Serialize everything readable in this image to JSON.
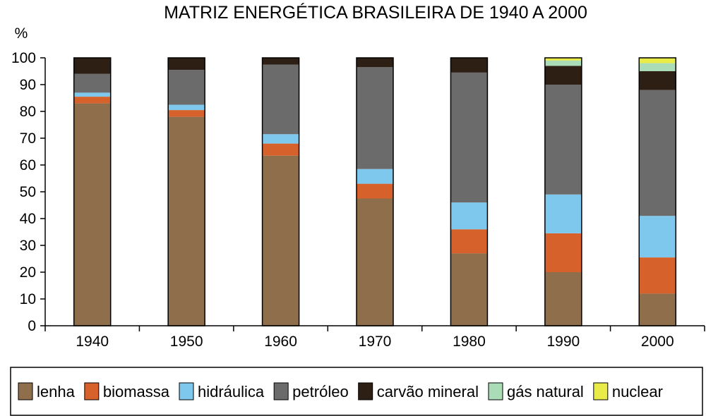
{
  "chart_data": {
    "type": "bar",
    "stacked": true,
    "title": "MATRIZ ENERGÉTICA BRASILEIRA DE 1940 A 2000",
    "ylabel": "%",
    "xlabel": "",
    "ylim": [
      0,
      100
    ],
    "yticks": [
      0,
      10,
      20,
      30,
      40,
      50,
      60,
      70,
      80,
      90,
      100
    ],
    "grid": false,
    "legend_position": "bottom",
    "categories": [
      "1940",
      "1950",
      "1960",
      "1970",
      "1980",
      "1990",
      "2000"
    ],
    "series": [
      {
        "name": "lenha",
        "color": "#8f6e4c",
        "values": [
          83,
          78,
          63.5,
          47.5,
          27,
          20,
          12
        ]
      },
      {
        "name": "biomassa",
        "color": "#d7612b",
        "values": [
          2.5,
          2.5,
          4.5,
          5.5,
          9,
          14.5,
          13.5
        ]
      },
      {
        "name": "hidráulica",
        "color": "#7ec8ee",
        "values": [
          1.5,
          2,
          3.5,
          5.5,
          10,
          14.5,
          15.5
        ]
      },
      {
        "name": "petróleo",
        "color": "#6b6b6b",
        "values": [
          7,
          13,
          26,
          38,
          48.5,
          41,
          47
        ]
      },
      {
        "name": "carvão mineral",
        "color": "#2e1f15",
        "values": [
          6,
          4.5,
          2.5,
          3.5,
          5.5,
          7,
          7
        ]
      },
      {
        "name": "gás natural",
        "color": "#a9dcb7",
        "values": [
          0,
          0,
          0,
          0,
          0,
          2,
          3
        ]
      },
      {
        "name": "nuclear",
        "color": "#e8eb48",
        "values": [
          0,
          0,
          0,
          0,
          0,
          1,
          2
        ]
      }
    ]
  }
}
